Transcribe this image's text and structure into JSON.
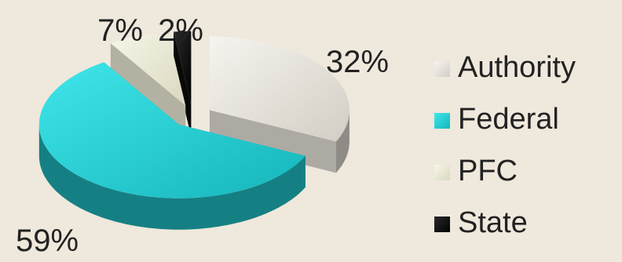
{
  "chart_data": {
    "type": "pie",
    "style": "3d-exploded",
    "slices": [
      {
        "name": "Authority",
        "value": 32,
        "label": "32%",
        "color": "#e6e2da"
      },
      {
        "name": "Federal",
        "value": 59,
        "label": "59%",
        "color": "#22cfd4"
      },
      {
        "name": "PFC",
        "value": 7,
        "label": "7%",
        "color": "#eeedd8"
      },
      {
        "name": "State",
        "value": 2,
        "label": "2%",
        "color": "#0a0a0a"
      }
    ],
    "legend_placement": "right"
  }
}
